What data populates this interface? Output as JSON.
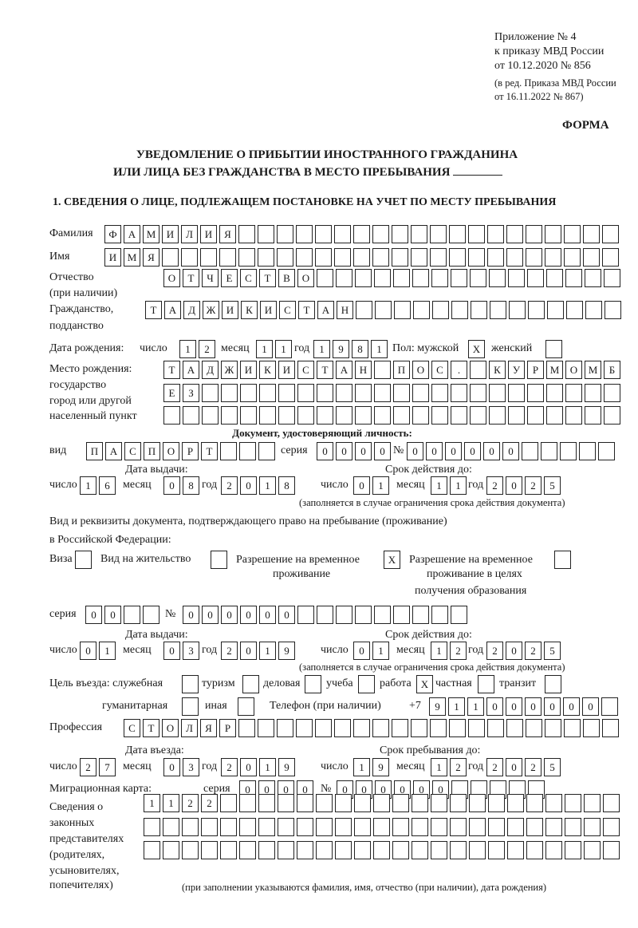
{
  "header": {
    "appendix": [
      "Приложение № 4",
      "к приказу МВД России",
      "от 10.12.2020 № 856"
    ],
    "amendment": [
      "(в ред. Приказа МВД России",
      "от 16.11.2022 № 867)"
    ],
    "form_label": "ФОРМА",
    "title_line1": "УВЕДОМЛЕНИЕ О ПРИБЫТИИ ИНОСТРАННОГО ГРАЖДАНИНА",
    "title_line2": "ИЛИ ЛИЦА БЕЗ ГРАЖДАНСТВА В МЕСТО ПРЕБЫВАНИЯ",
    "section1_title": "1. СВЕДЕНИЯ О ЛИЦЕ, ПОДЛЕЖАЩЕМ ПОСТАНОВКЕ НА УЧЕТ ПО МЕСТУ ПРЕБЫВАНИЯ"
  },
  "person": {
    "surname_label": "Фамилия",
    "surname": [
      "Ф",
      "А",
      "М",
      "И",
      "Л",
      "И",
      "Я"
    ],
    "name_label": "Имя",
    "name": [
      "И",
      "М",
      "Я"
    ],
    "patronymic_label": "Отчество",
    "patronymic_note": "(при наличии)",
    "patronymic": [
      "О",
      "Т",
      "Ч",
      "Е",
      "С",
      "Т",
      "В",
      "О"
    ],
    "citizenship_label": [
      "Гражданство,",
      "подданство"
    ],
    "citizenship": [
      "Т",
      "А",
      "Д",
      "Ж",
      "И",
      "К",
      "И",
      "С",
      "Т",
      "А",
      "Н"
    ]
  },
  "birth": {
    "label": "Дата рождения:",
    "day_label": "число",
    "day": [
      "1",
      "2"
    ],
    "month_label": "месяц",
    "month": [
      "1",
      "1"
    ],
    "year_label": "год",
    "year": [
      "1",
      "9",
      "8",
      "1"
    ],
    "male_label": "Пол: мужской",
    "male": [
      "X"
    ],
    "female_label": "женский",
    "female": []
  },
  "birthplace": {
    "labels": [
      "Место рождения:",
      "государство",
      "город или другой",
      "населенный пункт"
    ],
    "rows": [
      [
        "Т",
        "А",
        "Д",
        "Ж",
        "И",
        "К",
        "И",
        "С",
        "Т",
        "А",
        "Н",
        "",
        "П",
        "О",
        "С",
        ".",
        "",
        "К",
        "У",
        "Р",
        "М",
        "О",
        "М",
        "Б"
      ],
      [
        "Е",
        "З"
      ],
      []
    ]
  },
  "id_doc": {
    "heading": "Документ, удостоверяющий личность:",
    "type_label": "вид",
    "type": [
      "П",
      "А",
      "С",
      "П",
      "О",
      "Р",
      "Т"
    ],
    "series_label": "серия",
    "series": [
      "0",
      "0",
      "0",
      "0"
    ],
    "number_label": "№",
    "number": [
      "0",
      "0",
      "0",
      "0",
      "0",
      "0"
    ],
    "issue_label": "Дата выдачи:",
    "valid_label": "Срок действия до:",
    "issue": {
      "day": [
        "1",
        "6"
      ],
      "month": [
        "0",
        "8"
      ],
      "year": [
        "2",
        "0",
        "1",
        "8"
      ]
    },
    "valid": {
      "day": [
        "0",
        "1"
      ],
      "month": [
        "1",
        "1"
      ],
      "year": [
        "2",
        "0",
        "2",
        "5"
      ]
    },
    "note": "(заполняется в случае ограничения срока действия документа)"
  },
  "residence_doc": {
    "intro_line1": "Вид и реквизиты документа, подтверждающего право на пребывание (проживание)",
    "intro_line2": "в Российской Федерации:",
    "visa_label": "Виза",
    "visa": [],
    "residence_permit_label": "Вид на жительство",
    "residence_permit": [],
    "temp_permit_label": [
      "Разрешение на временное",
      "проживание"
    ],
    "temp_permit": [
      "X"
    ],
    "temp_permit_edu_label": [
      "Разрешение на временное",
      "проживание в целях",
      "получения образования"
    ],
    "temp_permit_edu": [],
    "series_label": "серия",
    "series": [
      "0",
      "0"
    ],
    "number_label": "№",
    "number": [
      "0",
      "0",
      "0",
      "0",
      "0",
      "0"
    ],
    "issue_label": "Дата выдачи:",
    "valid_label": "Срок действия до:",
    "issue": {
      "day": [
        "0",
        "1"
      ],
      "month": [
        "0",
        "3"
      ],
      "year": [
        "2",
        "0",
        "1",
        "9"
      ]
    },
    "valid": {
      "day": [
        "0",
        "1"
      ],
      "month": [
        "1",
        "2"
      ],
      "year": [
        "2",
        "0",
        "2",
        "5"
      ]
    },
    "note": "(заполняется в случае ограничения срока действия документа)"
  },
  "purpose": {
    "label": "Цель въезда: служебная",
    "business_trip": [],
    "tourism_label": "туризм",
    "tourism": [],
    "business_label": "деловая",
    "business": [],
    "study_label": "учеба",
    "study": [],
    "work_label": "работа",
    "work": [
      "X"
    ],
    "private_label": "частная",
    "private": [],
    "transit_label": "транзит",
    "transit": [],
    "humanitarian_label": "гуманитарная",
    "humanitarian": [],
    "other_label": "иная",
    "other": []
  },
  "phone": {
    "label": "Телефон (при наличии)",
    "prefix": "+7",
    "digits": [
      "9",
      "1",
      "1",
      "0",
      "0",
      "0",
      "0",
      "0",
      "0"
    ]
  },
  "profession": {
    "label": "Профессия",
    "value": [
      "С",
      "Т",
      "О",
      "Л",
      "Я",
      "Р"
    ]
  },
  "entry": {
    "entry_label": "Дата въезда:",
    "stay_label": "Срок пребывания до:",
    "entry_date": {
      "day": [
        "2",
        "7"
      ],
      "month": [
        "0",
        "3"
      ],
      "year": [
        "2",
        "0",
        "1",
        "9"
      ]
    },
    "stay_until": {
      "day": [
        "1",
        "9"
      ],
      "month": [
        "1",
        "2"
      ],
      "year": [
        "2",
        "0",
        "2",
        "5"
      ]
    }
  },
  "migration_card": {
    "label": "Миграционная карта:",
    "series_label": "серия",
    "series": [
      "0",
      "0",
      "0",
      "0"
    ],
    "number_label": "№",
    "number": [
      "0",
      "0",
      "0",
      "0",
      "0",
      "0"
    ]
  },
  "representatives": {
    "label": [
      "Сведения о",
      "законных",
      "представителях",
      "(родителях,",
      "усыновителях,",
      "попечителях)"
    ],
    "rows": [
      [
        "1",
        "1",
        "2",
        "2"
      ],
      [],
      []
    ],
    "note": "(при заполнении указываются фамилия, имя, отчество (при наличии), дата рождения)"
  },
  "date_labels": {
    "day": "число",
    "month": "месяц",
    "year": "год"
  }
}
